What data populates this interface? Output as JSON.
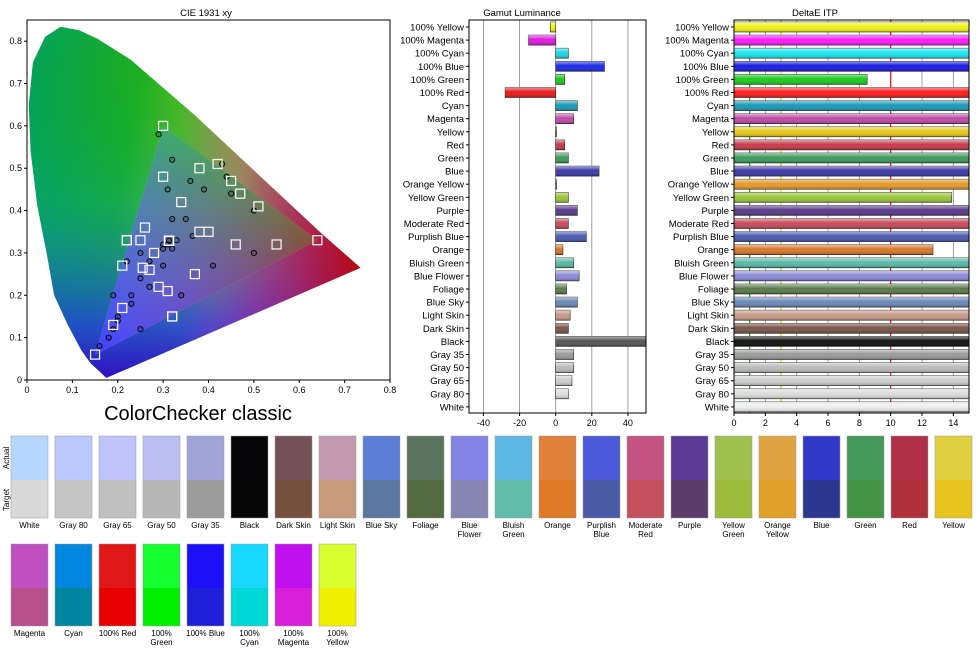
{
  "caption": "ColorChecker classic",
  "chart_data": [
    {
      "type": "scatter",
      "title": "CIE 1931 xy",
      "xlim": [
        0,
        0.8
      ],
      "ylim": [
        0,
        0.85
      ],
      "x_ticks": [
        "0",
        "0.1",
        "0.2",
        "0.3",
        "0.4",
        "0.5",
        "0.6",
        "0.7",
        "0.8"
      ],
      "y_ticks": [
        "0",
        "0.1",
        "0.2",
        "0.3",
        "0.4",
        "0.5",
        "0.6",
        "0.7",
        "0.8"
      ],
      "gamut_triangle": [
        [
          0.64,
          0.33
        ],
        [
          0.3,
          0.6
        ],
        [
          0.15,
          0.06
        ]
      ],
      "series": [
        {
          "name": "Actual",
          "marker": "circle",
          "points": [
            [
              0.313,
              0.329
            ],
            [
              0.3,
              0.31
            ],
            [
              0.31,
              0.32
            ],
            [
              0.32,
              0.31
            ],
            [
              0.33,
              0.33
            ],
            [
              0.5,
              0.3
            ],
            [
              0.365,
              0.34
            ],
            [
              0.41,
              0.27
            ],
            [
              0.25,
              0.24
            ],
            [
              0.39,
              0.45
            ],
            [
              0.34,
              0.2
            ],
            [
              0.32,
              0.52
            ],
            [
              0.5,
              0.4
            ],
            [
              0.45,
              0.44
            ],
            [
              0.23,
              0.18
            ],
            [
              0.35,
              0.38
            ],
            [
              0.3,
              0.27
            ],
            [
              0.36,
              0.47
            ],
            [
              0.44,
              0.48
            ],
            [
              0.32,
              0.38
            ],
            [
              0.27,
              0.22
            ],
            [
              0.2,
              0.15
            ],
            [
              0.31,
              0.45
            ],
            [
              0.27,
              0.28
            ],
            [
              0.22,
              0.28
            ],
            [
              0.23,
              0.2
            ],
            [
              0.19,
              0.2
            ],
            [
              0.29,
              0.58
            ],
            [
              0.16,
              0.08
            ],
            [
              0.2,
              0.14
            ],
            [
              0.19,
              0.12
            ],
            [
              0.25,
              0.12
            ],
            [
              0.25,
              0.3
            ],
            [
              0.3,
              0.32
            ],
            [
              0.43,
              0.51
            ],
            [
              0.18,
              0.1
            ]
          ]
        },
        {
          "name": "Target",
          "marker": "square",
          "points": [
            [
              0.313,
              0.329
            ],
            [
              0.313,
              0.329
            ],
            [
              0.313,
              0.329
            ],
            [
              0.313,
              0.329
            ],
            [
              0.313,
              0.329
            ],
            [
              0.4,
              0.35
            ],
            [
              0.38,
              0.35
            ],
            [
              0.255,
              0.265
            ],
            [
              0.25,
              0.33
            ],
            [
              0.34,
              0.42
            ],
            [
              0.27,
              0.26
            ],
            [
              0.26,
              0.36
            ],
            [
              0.51,
              0.41
            ],
            [
              0.21,
              0.17
            ],
            [
              0.46,
              0.32
            ],
            [
              0.29,
              0.22
            ],
            [
              0.38,
              0.5
            ],
            [
              0.47,
              0.44
            ],
            [
              0.19,
              0.13
            ],
            [
              0.3,
              0.48
            ],
            [
              0.55,
              0.32
            ],
            [
              0.45,
              0.47
            ],
            [
              0.32,
              0.15
            ],
            [
              0.22,
              0.33
            ],
            [
              0.64,
              0.33
            ],
            [
              0.3,
              0.6
            ],
            [
              0.15,
              0.06
            ],
            [
              0.22,
              0.33
            ],
            [
              0.32,
              0.15
            ],
            [
              0.42,
              0.51
            ],
            [
              0.31,
              0.21
            ],
            [
              0.21,
              0.27
            ],
            [
              0.37,
              0.25
            ],
            [
              0.28,
              0.3
            ]
          ]
        }
      ]
    },
    {
      "type": "bar",
      "orientation": "horizontal",
      "title": "Gamut Luminance",
      "xlim": [
        -48,
        50
      ],
      "x_ticks": [
        -40,
        -20,
        0,
        20,
        40
      ],
      "grid": true,
      "categories": [
        "100% Yellow",
        "100% Magenta",
        "100% Cyan",
        "100% Blue",
        "100% Green",
        "100% Red",
        "Cyan",
        "Magenta",
        "Yellow",
        "Red",
        "Green",
        "Blue",
        "Orange Yellow",
        "Yellow Green",
        "Purple",
        "Moderate Red",
        "Purplish Blue",
        "Orange",
        "Bluish Green",
        "Blue Flower",
        "Foliage",
        "Blue Sky",
        "Light Skin",
        "Dark Skin",
        "Black",
        "Gray 35",
        "Gray 50",
        "Gray 65",
        "Gray 80",
        "White"
      ],
      "values": [
        -3,
        -15,
        7,
        27,
        5,
        -28,
        12,
        10,
        0.5,
        5,
        7,
        24,
        0.5,
        7,
        12,
        7,
        17,
        4,
        10,
        13,
        6,
        12,
        8,
        7,
        50,
        10,
        10,
        9,
        7,
        0
      ]
    },
    {
      "type": "bar",
      "orientation": "horizontal",
      "title": "DeltaE ITP",
      "xlim": [
        0,
        15
      ],
      "x_ticks": [
        0,
        2,
        4,
        6,
        8,
        10,
        12,
        14
      ],
      "grid": true,
      "threshold_lines": [
        {
          "value": 1,
          "color": "#22aa22"
        },
        {
          "value": 3,
          "color": "#e6cc00"
        },
        {
          "value": 10,
          "color": "#dd2222"
        }
      ],
      "categories": [
        "100% Yellow",
        "100% Magenta",
        "100% Cyan",
        "100% Blue",
        "100% Green",
        "100% Red",
        "Cyan",
        "Magenta",
        "Yellow",
        "Red",
        "Green",
        "Blue",
        "Orange Yellow",
        "Yellow Green",
        "Purple",
        "Moderate Red",
        "Purplish Blue",
        "Orange",
        "Bluish Green",
        "Blue Flower",
        "Foliage",
        "Blue Sky",
        "Light Skin",
        "Dark Skin",
        "Black",
        "Gray 35",
        "Gray 50",
        "Gray 65",
        "Gray 80",
        "White"
      ],
      "values": [
        15,
        15,
        15,
        15,
        8.5,
        15,
        15,
        15,
        15,
        15,
        15,
        15,
        15,
        13.9,
        15,
        15,
        15,
        12.7,
        15,
        15,
        15,
        15,
        15,
        15,
        15,
        15,
        15,
        15,
        15,
        15
      ],
      "bar_colors": [
        "#f2f21a",
        "#ff1aff",
        "#1ae6f0",
        "#1a1ae6",
        "#1acc1a",
        "#ff1a1a",
        "#1a9ab8",
        "#c04aa8",
        "#e6c81a",
        "#c83a4a",
        "#3a9a5a",
        "#3a3aa8",
        "#e69a2a",
        "#9ac83a",
        "#5a3a8a",
        "#c84a5a",
        "#4a5ab0",
        "#d8762a",
        "#5abaa8",
        "#8a8ad8",
        "#5a7a4a",
        "#6a88b8",
        "#c89a88",
        "#7a5448",
        "#111111",
        "#9a9a9a",
        "#bbbbbb",
        "#cccccc",
        "#dddddd",
        "#eeeeee"
      ]
    }
  ],
  "patches": {
    "row_labels": [
      "Actual",
      "Target"
    ],
    "row1": [
      {
        "label": "White",
        "actual": "#b6d6fb",
        "target": "#d9d9d9"
      },
      {
        "label": "Gray 80",
        "actual": "#bbc8fb",
        "target": "#c6c6c6"
      },
      {
        "label": "Gray 65",
        "actual": "#c0c4fa",
        "target": "#c0c0c0"
      },
      {
        "label": "Gray 50",
        "actual": "#babef0",
        "target": "#b8b8b8"
      },
      {
        "label": "Gray 35",
        "actual": "#a0a4d8",
        "target": "#9c9c9c"
      },
      {
        "label": "Black",
        "actual": "#060608",
        "target": "#060606"
      },
      {
        "label": "Dark Skin",
        "actual": "#745058",
        "target": "#76503e"
      },
      {
        "label": "Light Skin",
        "actual": "#c49aae",
        "target": "#c89a7e"
      },
      {
        "label": "Blue Sky",
        "actual": "#5c7ed4",
        "target": "#5a78a0"
      },
      {
        "label": "Foliage",
        "actual": "#5a7460",
        "target": "#546a40"
      },
      {
        "label": "Blue\nFlower",
        "actual": "#8484e6",
        "target": "#8686b2"
      },
      {
        "label": "Bluish\nGreen",
        "actual": "#5cb8e0",
        "target": "#62bcaa"
      },
      {
        "label": "Orange",
        "actual": "#e0803a",
        "target": "#de7a26"
      },
      {
        "label": "Purplish\nBlue",
        "actual": "#4858d8",
        "target": "#4a5aa6"
      },
      {
        "label": "Moderate\nRed",
        "actual": "#c65482",
        "target": "#c4505e"
      },
      {
        "label": "Purple",
        "actual": "#5a3c98",
        "target": "#5c3c6a"
      },
      {
        "label": "Yellow\nGreen",
        "actual": "#a0c050",
        "target": "#9cbc3c"
      },
      {
        "label": "Orange\nYellow",
        "actual": "#dea440",
        "target": "#e0a02a"
      },
      {
        "label": "Blue",
        "actual": "#3038c8",
        "target": "#2c3890"
      },
      {
        "label": "Green",
        "actual": "#449858",
        "target": "#449444"
      },
      {
        "label": "Red",
        "actual": "#b0304a",
        "target": "#b0303c"
      },
      {
        "label": "Yellow",
        "actual": "#e0d040",
        "target": "#e8c41e"
      }
    ],
    "row2": [
      {
        "label": "Magenta",
        "actual": "#c050c0",
        "target": "#b8508c"
      },
      {
        "label": "Cyan",
        "actual": "#0088e0",
        "target": "#0086a0"
      },
      {
        "label": "100% Red",
        "actual": "#e01818",
        "target": "#e80000"
      },
      {
        "label": "100%\nGreen",
        "actual": "#18ff30",
        "target": "#00f000"
      },
      {
        "label": "100% Blue",
        "actual": "#1e10f8",
        "target": "#2020d8"
      },
      {
        "label": "100%\nCyan",
        "actual": "#18d8ff",
        "target": "#00d8d8"
      },
      {
        "label": "100%\nMagenta",
        "actual": "#c010f0",
        "target": "#d820d8"
      },
      {
        "label": "100%\nYellow",
        "actual": "#d8ff30",
        "target": "#f0f000"
      }
    ]
  }
}
